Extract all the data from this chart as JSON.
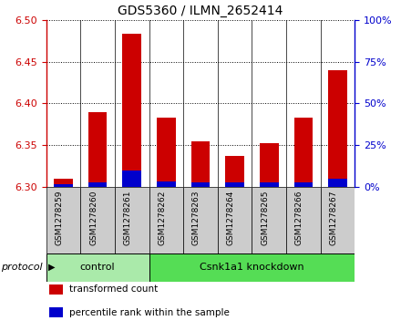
{
  "title": "GDS5360 / ILMN_2652414",
  "samples": [
    "GSM1278259",
    "GSM1278260",
    "GSM1278261",
    "GSM1278262",
    "GSM1278263",
    "GSM1278264",
    "GSM1278265",
    "GSM1278266",
    "GSM1278267"
  ],
  "transformed_counts": [
    6.31,
    6.39,
    6.483,
    6.383,
    6.355,
    6.337,
    6.352,
    6.383,
    6.44
  ],
  "percentile_ranks": [
    1.5,
    3.0,
    10.0,
    3.5,
    3.0,
    3.0,
    3.0,
    3.0,
    5.0
  ],
  "y_min": 6.3,
  "y_max": 6.5,
  "y_ticks": [
    6.3,
    6.35,
    6.4,
    6.45,
    6.5
  ],
  "y2_ticks": [
    0,
    25,
    50,
    75,
    100
  ],
  "bar_color_red": "#cc0000",
  "bar_color_blue": "#0000cc",
  "bar_width": 0.55,
  "protocol_groups": [
    {
      "label": "control",
      "start": 0,
      "end": 2,
      "color": "#aaeaaa"
    },
    {
      "label": "Csnk1a1 knockdown",
      "start": 3,
      "end": 8,
      "color": "#55dd55"
    }
  ],
  "legend_items": [
    {
      "label": "transformed count",
      "color": "#cc0000"
    },
    {
      "label": "percentile rank within the sample",
      "color": "#0000cc"
    }
  ],
  "protocol_label": "protocol",
  "xtick_bg": "#cccccc",
  "plot_bg": "#ffffff"
}
